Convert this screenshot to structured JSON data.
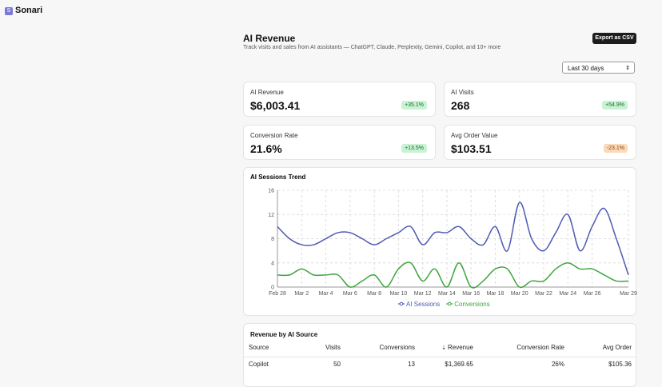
{
  "app": {
    "logo": "S",
    "name": "Sonari"
  },
  "header": {
    "title": "AI Revenue",
    "subtitle": "Track visits and sales from AI assistants — ChatGPT, Claude, Perplexity, Gemini, Copilot, and 10+ more",
    "export_button": "Export as CSV",
    "date_range": "Last 30 days"
  },
  "cards": [
    {
      "label": "AI Revenue",
      "value": "$6,003.41",
      "change": "+35.1%"
    },
    {
      "label": "AI Visits",
      "value": "268",
      "change": "+54.9%"
    },
    {
      "label": "Conversion Rate",
      "value": "21.6%",
      "change": "+13.5%"
    },
    {
      "label": "Avg Order Value",
      "value": "$103.51",
      "change": "-23.1%"
    }
  ],
  "chart_data": {
    "type": "line",
    "title": "AI Sessions Trend",
    "categories": [
      "Feb 28",
      null,
      "Mar 2",
      null,
      "Mar 4",
      null,
      "Mar 6",
      null,
      "Mar 8",
      null,
      "Mar 10",
      null,
      "Mar 12",
      null,
      "Mar 14",
      null,
      "Mar 16",
      null,
      "Mar 18",
      null,
      "Mar 20",
      null,
      "Mar 22",
      null,
      "Mar 24",
      null,
      "Mar 26",
      null,
      null,
      "Mar 29"
    ],
    "series": [
      {
        "name": "AI Sessions",
        "color": "#4e5bb4",
        "values": [
          10,
          8,
          7,
          7,
          8,
          9,
          9,
          8,
          7,
          8,
          9,
          10,
          7,
          9,
          9,
          10,
          8,
          7,
          10,
          6,
          14,
          8,
          6,
          9,
          12,
          6,
          10,
          13,
          8,
          2
        ]
      },
      {
        "name": "Conversions",
        "color": "#3ea43e",
        "values": [
          2,
          2,
          3,
          2,
          2,
          2,
          0,
          1,
          2,
          0,
          3,
          4,
          1,
          3,
          0,
          4,
          0,
          1,
          3,
          3,
          0,
          1,
          1,
          3,
          4,
          3,
          3,
          2,
          1,
          1
        ]
      }
    ],
    "ylim": [
      0,
      16
    ],
    "yticks": [
      0,
      4,
      8,
      12,
      16
    ],
    "grid": true
  },
  "table": {
    "title": "Revenue by AI Source",
    "columns": [
      "Source",
      "Visits",
      "Conversions",
      "Revenue",
      "Conversion Rate",
      "Avg Order"
    ],
    "rows": [
      [
        "Copilot",
        "50",
        "13",
        "$1,369.65",
        "26%",
        "$105.36"
      ]
    ]
  }
}
